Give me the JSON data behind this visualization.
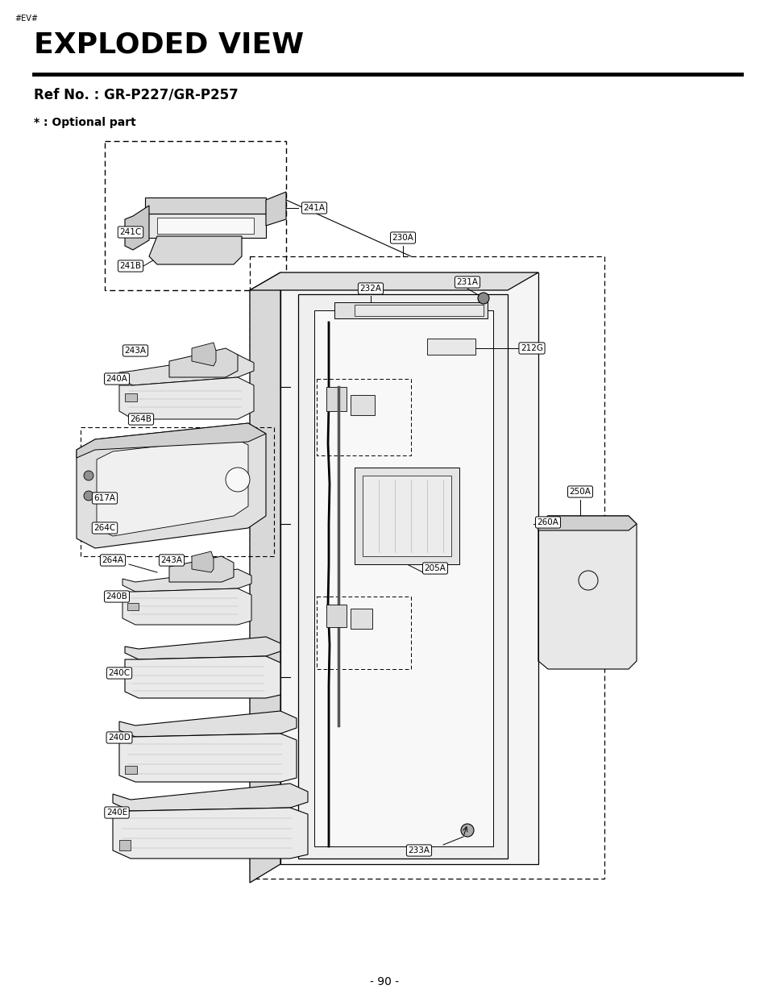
{
  "title": "EXPLODED VIEW",
  "subtitle": "Ref No. : GR-P227/GR-P257",
  "optional_text": "* : Optional part",
  "watermark": "#EV#",
  "page_number": "- 90 -",
  "background_color": "#ffffff",
  "title_fontsize": 26,
  "subtitle_fontsize": 12,
  "optional_fontsize": 10,
  "watermark_fontsize": 7,
  "page_fontsize": 10
}
